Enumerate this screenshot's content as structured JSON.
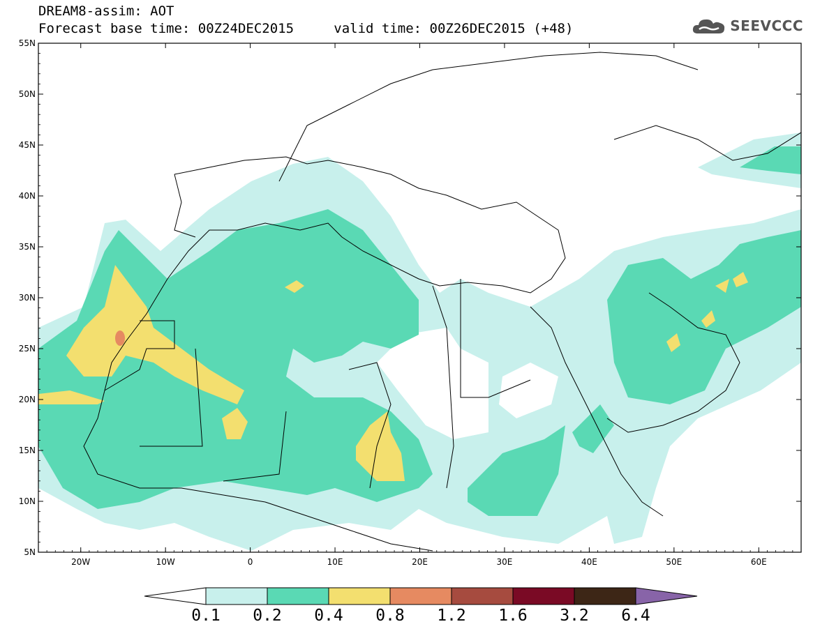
{
  "header": {
    "title": "DREAM8-assim: AOT",
    "subtitle_base": "Forecast base time: 00Z24DEC2015",
    "subtitle_valid": "valid time: 00Z26DEC2015 (+48)"
  },
  "logo": {
    "text": "SEEVCCC",
    "icon": "cloud-icon"
  },
  "map": {
    "lat_labels": [
      "55N",
      "50N",
      "45N",
      "40N",
      "35N",
      "30N",
      "25N",
      "20N",
      "15N",
      "10N",
      "5N"
    ],
    "lon_labels": [
      "20W",
      "10W",
      "0",
      "10E",
      "20E",
      "30E",
      "40E",
      "50E",
      "60E"
    ],
    "extent": {
      "lon_min": -25,
      "lon_max": 65,
      "lat_min": 5,
      "lat_max": 55
    }
  },
  "colorbar": {
    "levels": [
      "0.1",
      "0.2",
      "0.4",
      "0.8",
      "1.2",
      "1.6",
      "3.2",
      "6.4"
    ],
    "colors": [
      "#c8f0ec",
      "#5ad9b4",
      "#f3df6f",
      "#e68a61",
      "#a64b3f",
      "#7a0a25",
      "#3d2616",
      "#8864a8"
    ]
  }
}
